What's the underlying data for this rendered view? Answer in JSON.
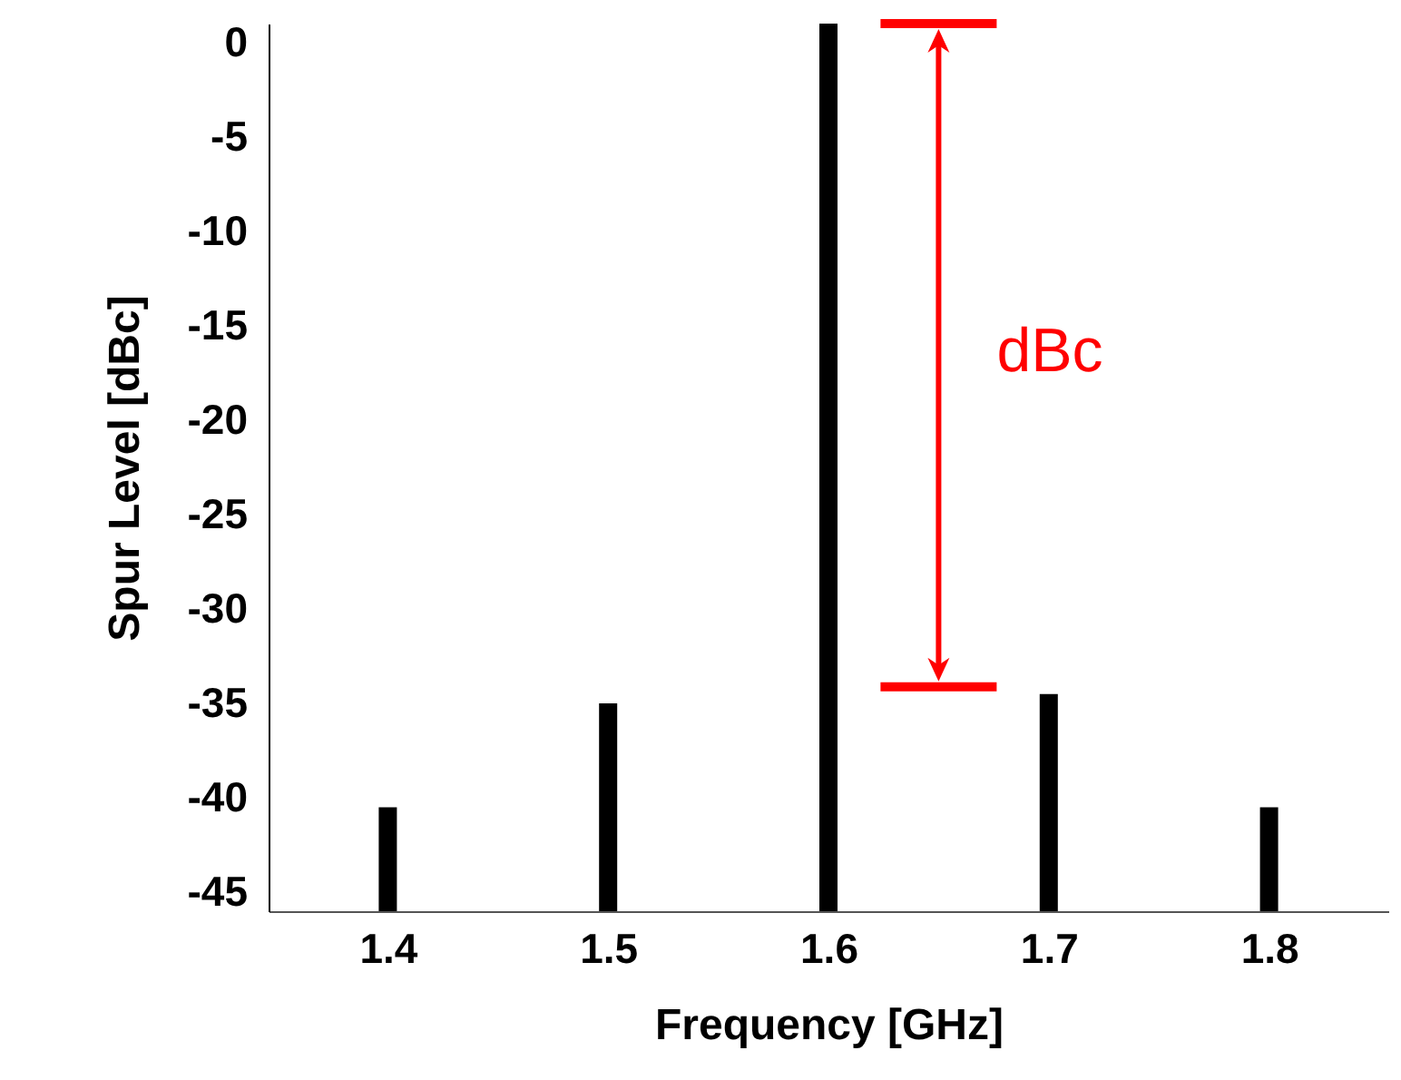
{
  "chart_data": {
    "type": "bar",
    "xlabel": "Frequency [GHz]",
    "ylabel": "Spur Level [dBc]",
    "x": [
      1.4,
      1.5,
      1.6,
      1.7,
      1.8
    ],
    "base": [
      -46,
      -46,
      -46,
      -46,
      -46
    ],
    "values": [
      5.5,
      11,
      47,
      11.5,
      5.5
    ],
    "color": "#000000",
    "xlim": [
      1.35,
      1.85
    ],
    "xticks": [
      1.4,
      1.5,
      1.6,
      1.7,
      1.8
    ],
    "ylim": [
      -46,
      1
    ],
    "yticks": [
      0,
      -5,
      -10,
      -15,
      -20,
      -25,
      -30,
      -35,
      -40,
      -45
    ],
    "annotations": [
      "dBc"
    ]
  }
}
